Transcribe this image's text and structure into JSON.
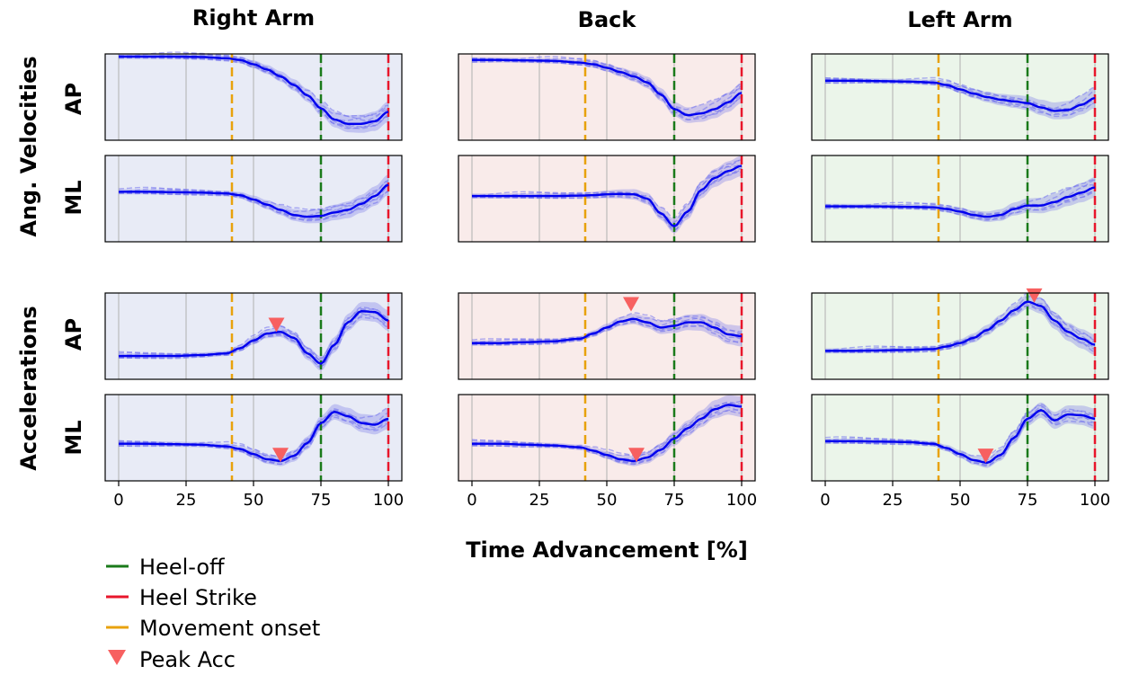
{
  "chart_data": {
    "type": "line",
    "xlabel": "Time Advancement [%]",
    "xlim": [
      -5,
      105
    ],
    "xticks": [
      0,
      25,
      50,
      75,
      100
    ],
    "vlines": {
      "movement_onset": 42,
      "heel_off": 75,
      "heel_strike": 100
    },
    "columns": [
      "Right Arm",
      "Back",
      "Left Arm"
    ],
    "groups": [
      {
        "label": "Ang. Velocities",
        "rows": [
          "AP",
          "ML"
        ]
      },
      {
        "label": "Accelerations",
        "rows": [
          "AP",
          "ML"
        ]
      }
    ],
    "colors": {
      "mean": "#0000ee",
      "trials": "#7070ee",
      "band": "#7b7be8",
      "heel_off": "#1a7a1a",
      "heel_strike": "#e8162b",
      "movement_onset": "#e8a20c",
      "peak": "#f76060",
      "bg": [
        "#e8ebf6",
        "#f9ebea",
        "#ebf5ea"
      ]
    },
    "legend": {
      "position": "bottom-left",
      "entries": [
        {
          "label": "Heel-off",
          "kind": "line",
          "color": "#1a7a1a"
        },
        {
          "label": "Heel Strike",
          "kind": "line",
          "color": "#e8162b"
        },
        {
          "label": "Movement onset",
          "kind": "line",
          "color": "#e8a20c"
        },
        {
          "label": "Peak Acc",
          "kind": "triangle",
          "color": "#f76060"
        }
      ]
    },
    "panels": [
      {
        "col": 0,
        "row": 0,
        "ylim": [
          0,
          1
        ],
        "x": [
          0,
          10,
          20,
          30,
          40,
          45,
          50,
          55,
          60,
          65,
          70,
          75,
          80,
          85,
          90,
          95,
          100
        ],
        "y": [
          0.97,
          0.97,
          0.97,
          0.965,
          0.95,
          0.93,
          0.88,
          0.82,
          0.74,
          0.64,
          0.52,
          0.37,
          0.24,
          0.19,
          0.19,
          0.22,
          0.33
        ],
        "peak": null
      },
      {
        "col": 0,
        "row": 1,
        "ylim": [
          0,
          1
        ],
        "x": [
          0,
          10,
          20,
          30,
          40,
          45,
          50,
          55,
          60,
          65,
          70,
          75,
          80,
          85,
          90,
          95,
          100
        ],
        "y": [
          0.58,
          0.58,
          0.575,
          0.57,
          0.56,
          0.54,
          0.49,
          0.43,
          0.37,
          0.31,
          0.29,
          0.3,
          0.34,
          0.37,
          0.44,
          0.53,
          0.66
        ],
        "peak": null
      },
      {
        "col": 0,
        "row": 2,
        "ylim": [
          0,
          1
        ],
        "x": [
          0,
          10,
          20,
          30,
          40,
          45,
          50,
          55,
          60,
          65,
          70,
          75,
          80,
          85,
          90,
          95,
          100
        ],
        "y": [
          0.27,
          0.27,
          0.27,
          0.28,
          0.3,
          0.36,
          0.45,
          0.53,
          0.55,
          0.48,
          0.3,
          0.18,
          0.4,
          0.66,
          0.79,
          0.78,
          0.68
        ],
        "peak": {
          "x": 58.5,
          "y": 0.63
        }
      },
      {
        "col": 0,
        "row": 3,
        "ylim": [
          0,
          1
        ],
        "x": [
          0,
          10,
          20,
          30,
          40,
          45,
          50,
          55,
          60,
          65,
          70,
          75,
          80,
          85,
          90,
          95,
          100
        ],
        "y": [
          0.43,
          0.43,
          0.425,
          0.42,
          0.4,
          0.37,
          0.31,
          0.25,
          0.23,
          0.29,
          0.44,
          0.67,
          0.8,
          0.75,
          0.67,
          0.65,
          0.72
        ],
        "peak": {
          "x": 60,
          "y": 0.3
        }
      },
      {
        "col": 1,
        "row": 0,
        "ylim": [
          0,
          1
        ],
        "x": [
          0,
          10,
          20,
          30,
          40,
          45,
          50,
          55,
          60,
          65,
          70,
          75,
          80,
          85,
          90,
          95,
          100
        ],
        "y": [
          0.93,
          0.93,
          0.925,
          0.92,
          0.9,
          0.88,
          0.84,
          0.79,
          0.74,
          0.67,
          0.53,
          0.36,
          0.29,
          0.31,
          0.36,
          0.44,
          0.55
        ],
        "peak": null
      },
      {
        "col": 1,
        "row": 1,
        "ylim": [
          0,
          1
        ],
        "x": [
          0,
          10,
          20,
          30,
          40,
          45,
          50,
          55,
          60,
          65,
          70,
          75,
          80,
          85,
          90,
          95,
          100
        ],
        "y": [
          0.53,
          0.53,
          0.53,
          0.53,
          0.535,
          0.54,
          0.55,
          0.555,
          0.55,
          0.5,
          0.33,
          0.18,
          0.35,
          0.6,
          0.74,
          0.82,
          0.88
        ],
        "peak": null
      },
      {
        "col": 1,
        "row": 2,
        "ylim": [
          0,
          1
        ],
        "x": [
          0,
          10,
          20,
          30,
          40,
          45,
          50,
          55,
          60,
          65,
          70,
          75,
          80,
          85,
          90,
          95,
          100
        ],
        "y": [
          0.42,
          0.42,
          0.43,
          0.44,
          0.47,
          0.53,
          0.6,
          0.67,
          0.7,
          0.66,
          0.6,
          0.62,
          0.66,
          0.66,
          0.6,
          0.52,
          0.5
        ],
        "peak": {
          "x": 59,
          "y": 0.87
        }
      },
      {
        "col": 1,
        "row": 3,
        "ylim": [
          0,
          1
        ],
        "x": [
          0,
          10,
          20,
          30,
          40,
          45,
          50,
          55,
          60,
          65,
          70,
          75,
          80,
          85,
          90,
          95,
          100
        ],
        "y": [
          0.43,
          0.43,
          0.42,
          0.41,
          0.39,
          0.35,
          0.3,
          0.25,
          0.23,
          0.27,
          0.36,
          0.49,
          0.61,
          0.72,
          0.83,
          0.88,
          0.86
        ],
        "peak": {
          "x": 61,
          "y": 0.3
        }
      },
      {
        "col": 2,
        "row": 0,
        "ylim": [
          0,
          1
        ],
        "x": [
          0,
          10,
          20,
          30,
          40,
          45,
          50,
          55,
          60,
          65,
          70,
          75,
          80,
          85,
          90,
          95,
          100
        ],
        "y": [
          0.69,
          0.69,
          0.685,
          0.68,
          0.67,
          0.64,
          0.59,
          0.54,
          0.5,
          0.47,
          0.45,
          0.43,
          0.38,
          0.34,
          0.35,
          0.41,
          0.49
        ],
        "peak": null
      },
      {
        "col": 2,
        "row": 1,
        "ylim": [
          0,
          1
        ],
        "x": [
          0,
          10,
          20,
          30,
          40,
          45,
          50,
          55,
          60,
          65,
          70,
          75,
          80,
          85,
          90,
          95,
          100
        ],
        "y": [
          0.41,
          0.41,
          0.41,
          0.405,
          0.4,
          0.38,
          0.35,
          0.31,
          0.29,
          0.31,
          0.38,
          0.42,
          0.42,
          0.46,
          0.52,
          0.57,
          0.63
        ],
        "peak": null
      },
      {
        "col": 2,
        "row": 2,
        "ylim": [
          0,
          1
        ],
        "x": [
          0,
          10,
          20,
          30,
          40,
          45,
          50,
          55,
          60,
          65,
          70,
          75,
          80,
          85,
          90,
          95,
          100
        ],
        "y": [
          0.33,
          0.33,
          0.335,
          0.34,
          0.35,
          0.38,
          0.42,
          0.48,
          0.57,
          0.68,
          0.8,
          0.9,
          0.85,
          0.68,
          0.55,
          0.47,
          0.4
        ],
        "peak": {
          "x": 77.5,
          "y": 0.97
        }
      },
      {
        "col": 2,
        "row": 3,
        "ylim": [
          0,
          1
        ],
        "x": [
          0,
          10,
          20,
          30,
          40,
          45,
          50,
          55,
          60,
          65,
          70,
          75,
          80,
          85,
          90,
          95,
          100
        ],
        "y": [
          0.46,
          0.46,
          0.455,
          0.45,
          0.43,
          0.38,
          0.31,
          0.24,
          0.21,
          0.3,
          0.5,
          0.72,
          0.82,
          0.7,
          0.77,
          0.76,
          0.72
        ],
        "peak": {
          "x": 59.5,
          "y": 0.29
        }
      }
    ]
  }
}
